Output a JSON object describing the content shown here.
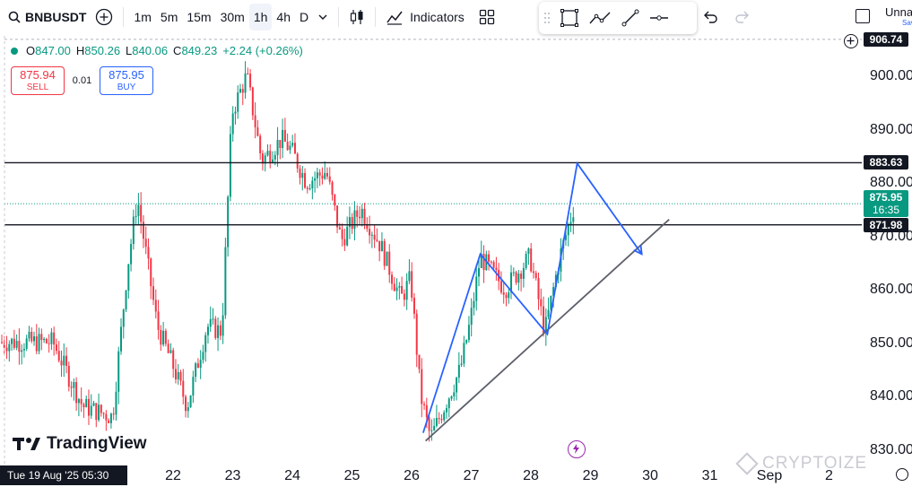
{
  "toolbar": {
    "symbol": "BNBUSDT",
    "intervals": [
      "1m",
      "5m",
      "15m",
      "30m",
      "1h",
      "4h",
      "D"
    ],
    "active_interval": "1h",
    "indicators_label": "Indicators",
    "layout_name": "Unna",
    "save_label": "Sav"
  },
  "legend": {
    "open_label": "O",
    "open": "847.00",
    "high_label": "H",
    "high": "850.26",
    "low_label": "L",
    "low": "840.06",
    "close_label": "C",
    "close": "849.23",
    "change": "+2.24 (+0.26%)"
  },
  "trade": {
    "sell_price": "875.94",
    "sell_label": "SELL",
    "buy_price": "875.95",
    "buy_label": "BUY",
    "spread": "0.01"
  },
  "badges": {
    "top_price": "906.74",
    "resistance": "883.63",
    "current_price": "875.95",
    "countdown": "16:35",
    "support": "871.98"
  },
  "time_badge": "Tue 19 Aug '25   05:30",
  "brand": "TradingView",
  "watermark": "CRYPTOIZE",
  "colors": {
    "up": "#089981",
    "down": "#f23645",
    "drawing": "#2962ff",
    "trendline": "#434651",
    "level": "#131722",
    "accent": "#2962ff"
  },
  "chart_data": {
    "type": "candlestick",
    "symbol": "BNBUSDT",
    "interval": "1h",
    "ylim": [
      826,
      908
    ],
    "y_ticks": [
      830,
      840,
      850,
      860,
      870,
      880,
      890,
      900
    ],
    "x_ticks": [
      "22",
      "23",
      "24",
      "25",
      "26",
      "27",
      "28",
      "29",
      "30",
      "31",
      "Sep",
      "2"
    ],
    "price_path": [
      {
        "t": "Aug 20",
        "p": 850
      },
      {
        "t": "Aug 20 12:00",
        "p": 838
      },
      {
        "t": "Aug 21",
        "p": 836
      },
      {
        "t": "Aug 21 06:00",
        "p": 864
      },
      {
        "t": "Aug 21 10:00",
        "p": 877
      },
      {
        "t": "Aug 21 18:00",
        "p": 853
      },
      {
        "t": "Aug 22",
        "p": 846
      },
      {
        "t": "Aug 22 06:00",
        "p": 838
      },
      {
        "t": "Aug 22 14:00",
        "p": 853
      },
      {
        "t": "Aug 22 20:00",
        "p": 852
      },
      {
        "t": "Aug 23",
        "p": 893
      },
      {
        "t": "Aug 23 06:00",
        "p": 900
      },
      {
        "t": "Aug 23 12:00",
        "p": 884
      },
      {
        "t": "Aug 23 20:00",
        "p": 888
      },
      {
        "t": "Aug 24",
        "p": 886
      },
      {
        "t": "Aug 24 06:00",
        "p": 880
      },
      {
        "t": "Aug 24 14:00",
        "p": 882
      },
      {
        "t": "Aug 24 20:00",
        "p": 869
      },
      {
        "t": "Aug 25",
        "p": 872
      },
      {
        "t": "Aug 25 04:00",
        "p": 875
      },
      {
        "t": "Aug 25 12:00",
        "p": 868
      },
      {
        "t": "Aug 25 20:00",
        "p": 858
      },
      {
        "t": "Aug 26",
        "p": 862
      },
      {
        "t": "Aug 26 04:00",
        "p": 840
      },
      {
        "t": "Aug 26 08:00",
        "p": 832
      },
      {
        "t": "Aug 26 20:00",
        "p": 845
      },
      {
        "t": "Aug 27",
        "p": 854
      },
      {
        "t": "Aug 27 04:00",
        "p": 866
      },
      {
        "t": "Aug 27 14:00",
        "p": 860
      },
      {
        "t": "Aug 28",
        "p": 866
      },
      {
        "t": "Aug 28 06:00",
        "p": 852
      },
      {
        "t": "Aug 28 12:00",
        "p": 866
      },
      {
        "t": "Aug 28 18:00",
        "p": 875.95
      }
    ],
    "horizontal_levels": [
      883.63,
      871.98
    ],
    "trendline": [
      {
        "t": "Aug 26 06:00",
        "p": 831.5
      },
      {
        "t": "Aug 30 08:00",
        "p": 873
      }
    ],
    "pattern_path": [
      {
        "t": "Aug 26 05:00",
        "p": 833
      },
      {
        "t": "Aug 27 04:00",
        "p": 866.5
      },
      {
        "t": "Aug 28 07:00",
        "p": 851.5
      },
      {
        "t": "Aug 28 19:00",
        "p": 883.5
      },
      {
        "t": "Aug 29 21:00",
        "p": 866.5
      }
    ]
  }
}
